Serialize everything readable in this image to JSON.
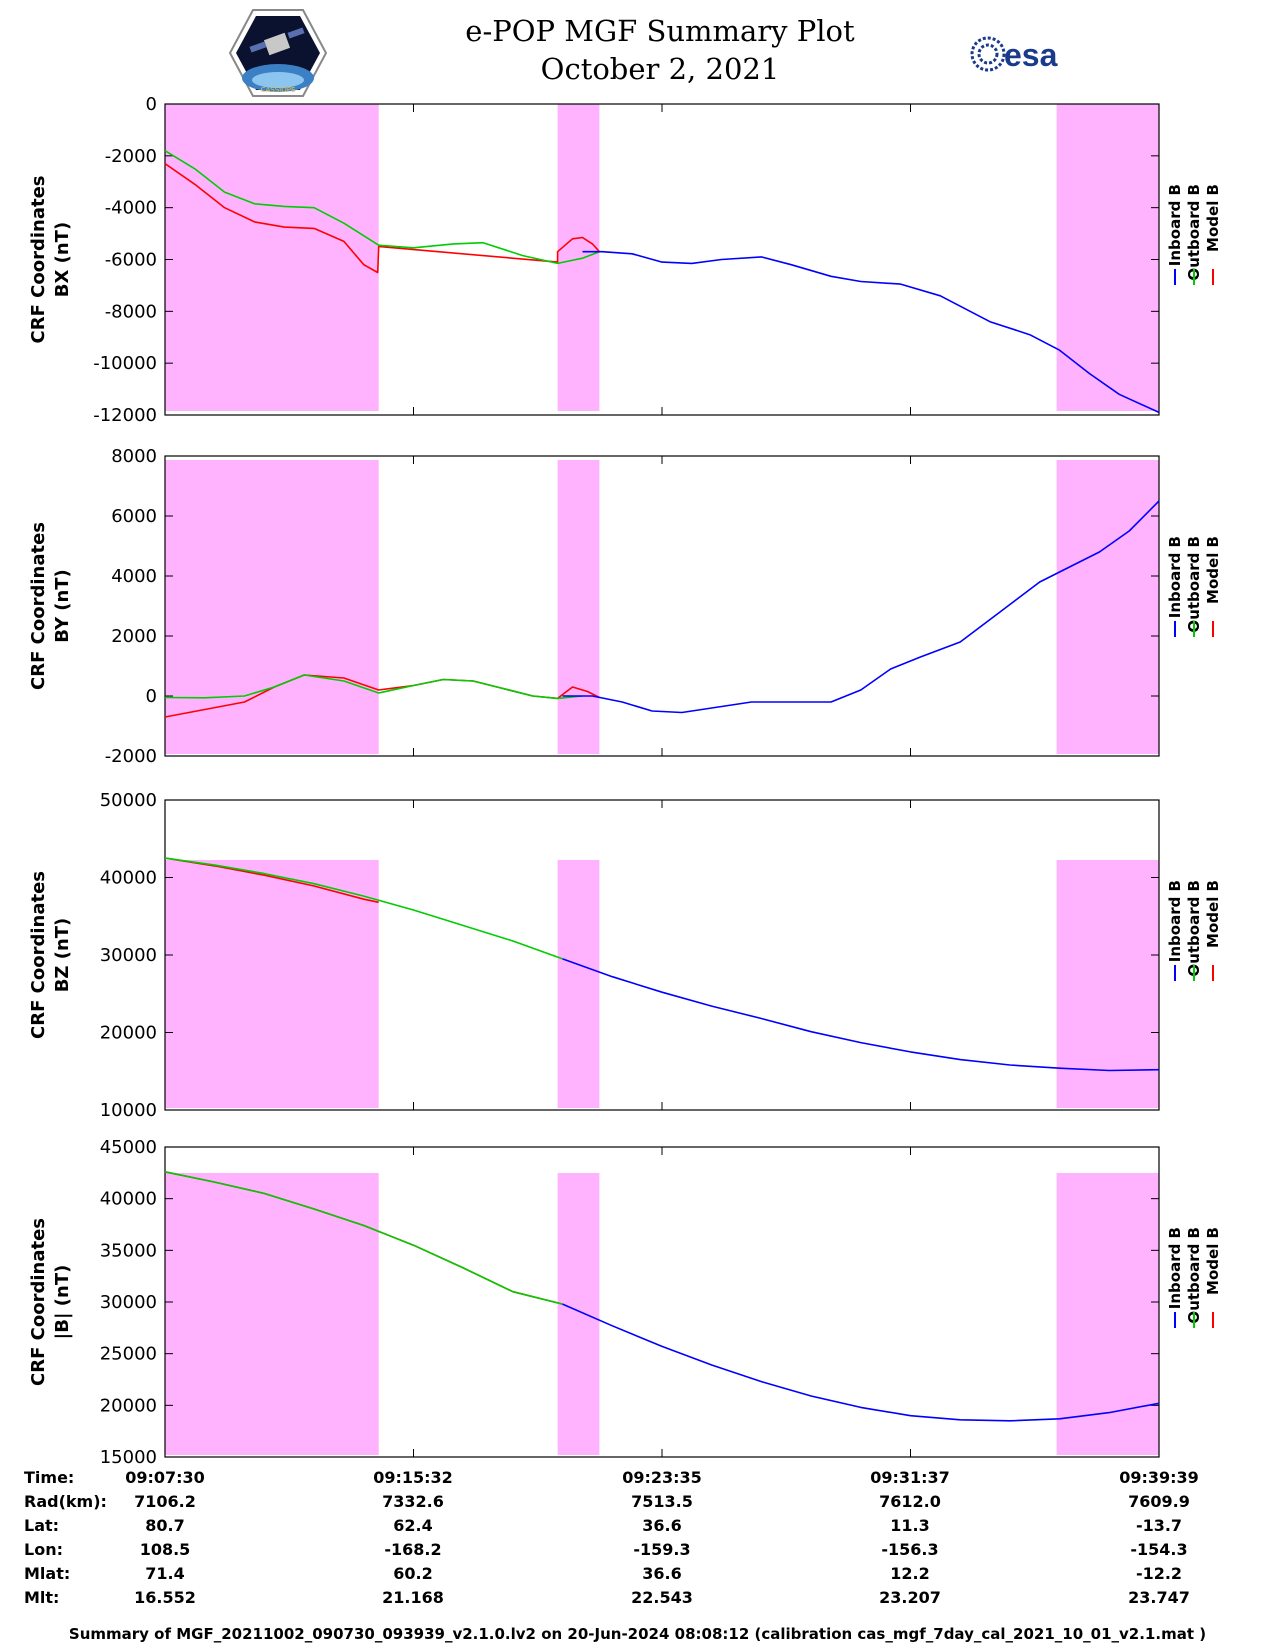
{
  "header": {
    "title_line1": "e-POP MGF Summary Plot",
    "title_line2": "October 2, 2021",
    "logo_left_text": "CASSIOPE",
    "logo_right_text": "esa"
  },
  "colors": {
    "inboard": "#0000ff",
    "outboard": "#00cc00",
    "model": "#ff0000",
    "shade": "#ffb3ff"
  },
  "chart_data": [
    {
      "type": "line",
      "ylabel": [
        "CRF Coordinates",
        "BX (nT)"
      ],
      "ylim": [
        -12000,
        0
      ],
      "yticks": [
        0,
        -2000,
        -4000,
        -6000,
        -8000,
        -10000,
        -12000
      ],
      "legend": [
        "Inboard B",
        "Outboard B",
        "Model B"
      ],
      "shaded_x": [
        [
          0,
          0.215
        ],
        [
          0.395,
          0.437
        ],
        [
          0.897,
          1.0
        ]
      ],
      "series": [
        {
          "name": "Model B",
          "x": [
            0,
            0.03,
            0.06,
            0.09,
            0.12,
            0.15,
            0.18,
            0.2,
            0.214,
            0.215,
            0.395,
            0.395,
            0.41,
            0.42,
            0.43,
            0.437
          ],
          "values": [
            -2300,
            -3100,
            -4000,
            -4550,
            -4750,
            -4800,
            -5300,
            -6200,
            -6500,
            -5500,
            -6100,
            -5700,
            -5200,
            -5150,
            -5400,
            -5700
          ]
        },
        {
          "name": "Outboard B",
          "x": [
            0,
            0.03,
            0.06,
            0.09,
            0.12,
            0.15,
            0.18,
            0.215,
            0.25,
            0.29,
            0.32,
            0.36,
            0.395,
            0.42,
            0.437
          ],
          "values": [
            -1800,
            -2500,
            -3400,
            -3850,
            -3950,
            -4000,
            -4600,
            -5450,
            -5550,
            -5400,
            -5350,
            -5850,
            -6150,
            -5950,
            -5700
          ]
        },
        {
          "name": "Inboard B",
          "x": [
            0.42,
            0.44,
            0.47,
            0.5,
            0.53,
            0.56,
            0.6,
            0.63,
            0.67,
            0.7,
            0.74,
            0.78,
            0.83,
            0.87,
            0.9,
            0.93,
            0.96,
            1.0
          ],
          "values": [
            -5700,
            -5700,
            -5780,
            -6100,
            -6150,
            -6000,
            -5900,
            -6200,
            -6650,
            -6850,
            -6950,
            -7400,
            -8400,
            -8900,
            -9500,
            -10400,
            -11200,
            -11900
          ]
        }
      ]
    },
    {
      "type": "line",
      "ylabel": [
        "CRF Coordinates",
        "BY (nT)"
      ],
      "ylim": [
        -2000,
        8000
      ],
      "yticks": [
        8000,
        6000,
        4000,
        2000,
        0,
        -2000
      ],
      "legend": [
        "Inboard B",
        "Outboard B",
        "Model B"
      ],
      "shaded_x": [
        [
          0,
          0.215
        ],
        [
          0.395,
          0.437
        ],
        [
          0.897,
          1.0
        ]
      ],
      "series": [
        {
          "name": "Model B",
          "x": [
            0,
            0.04,
            0.08,
            0.11,
            0.14,
            0.18,
            0.215,
            0.25,
            0.28,
            0.31,
            0.34,
            0.37,
            0.395,
            0.41,
            0.425,
            0.437
          ],
          "values": [
            -700,
            -450,
            -200,
            300,
            700,
            600,
            200,
            350,
            550,
            500,
            250,
            0,
            -80,
            300,
            150,
            -50
          ]
        },
        {
          "name": "Outboard B",
          "x": [
            0,
            0.04,
            0.08,
            0.11,
            0.14,
            0.18,
            0.215,
            0.25,
            0.28,
            0.31,
            0.34,
            0.37,
            0.395,
            0.42
          ],
          "values": [
            -50,
            -60,
            0,
            300,
            700,
            500,
            100,
            350,
            550,
            500,
            250,
            0,
            -80,
            0
          ]
        },
        {
          "name": "Inboard B",
          "x": [
            0.4,
            0.43,
            0.46,
            0.49,
            0.52,
            0.55,
            0.59,
            0.63,
            0.67,
            0.7,
            0.73,
            0.76,
            0.8,
            0.84,
            0.88,
            0.91,
            0.94,
            0.97,
            1.0
          ],
          "values": [
            0,
            0,
            -200,
            -500,
            -550,
            -400,
            -200,
            -200,
            -200,
            200,
            900,
            1300,
            1800,
            2800,
            3800,
            4300,
            4800,
            5500,
            6500
          ]
        }
      ]
    },
    {
      "type": "line",
      "ylabel": [
        "CRF Coordinates",
        "BZ (nT)"
      ],
      "ylim": [
        10000,
        50000
      ],
      "yticks": [
        50000,
        40000,
        30000,
        20000,
        10000
      ],
      "legend": [
        "Inboard B",
        "Outboard B",
        "Model B"
      ],
      "shaded_x": [
        [
          0,
          0.215
        ],
        [
          0.395,
          0.437
        ],
        [
          0.897,
          1.0
        ]
      ],
      "series": [
        {
          "name": "Model B",
          "x": [
            0,
            0.05,
            0.1,
            0.15,
            0.2,
            0.215
          ],
          "values": [
            42500,
            41500,
            40300,
            38900,
            37200,
            36800
          ]
        },
        {
          "name": "Outboard B",
          "x": [
            0,
            0.05,
            0.1,
            0.15,
            0.2,
            0.25,
            0.3,
            0.35,
            0.4
          ],
          "values": [
            42500,
            41600,
            40500,
            39200,
            37600,
            35800,
            33800,
            31800,
            29500
          ]
        },
        {
          "name": "Inboard B",
          "x": [
            0.4,
            0.45,
            0.5,
            0.55,
            0.6,
            0.65,
            0.7,
            0.75,
            0.8,
            0.85,
            0.9,
            0.95,
            1.0
          ],
          "values": [
            29500,
            27200,
            25200,
            23400,
            21800,
            20100,
            18700,
            17500,
            16500,
            15800,
            15400,
            15100,
            15200
          ]
        }
      ]
    },
    {
      "type": "line",
      "ylabel": [
        "CRF Coordinates",
        "|B| (nT)"
      ],
      "ylim": [
        15000,
        45000
      ],
      "yticks": [
        45000,
        40000,
        35000,
        30000,
        25000,
        20000,
        15000
      ],
      "legend": [
        "Inboard B",
        "Outboard B",
        "Model B"
      ],
      "shaded_x": [
        [
          0,
          0.215
        ],
        [
          0.395,
          0.437
        ],
        [
          0.897,
          1.0
        ]
      ],
      "series": [
        {
          "name": "Model B",
          "x": [
            0,
            0.05,
            0.1,
            0.15,
            0.2,
            0.25,
            0.3,
            0.35,
            0.4
          ],
          "values": [
            42600,
            41600,
            40500,
            39000,
            37400,
            35500,
            33300,
            31000,
            29800
          ]
        },
        {
          "name": "Outboard B",
          "x": [
            0,
            0.05,
            0.1,
            0.15,
            0.2,
            0.25,
            0.3,
            0.35,
            0.4
          ],
          "values": [
            42600,
            41600,
            40500,
            39000,
            37400,
            35500,
            33300,
            31000,
            29800
          ]
        },
        {
          "name": "Inboard B",
          "x": [
            0.4,
            0.45,
            0.5,
            0.55,
            0.6,
            0.65,
            0.7,
            0.75,
            0.8,
            0.85,
            0.9,
            0.95,
            1.0
          ],
          "values": [
            29800,
            27700,
            25700,
            23900,
            22300,
            20900,
            19800,
            19000,
            18600,
            18500,
            18700,
            19300,
            20200
          ]
        }
      ]
    }
  ],
  "table": {
    "labels": [
      "Time:",
      "Rad(km):",
      "Lat:",
      "Lon:",
      "Mlat:",
      "Mlt:"
    ],
    "columns": [
      [
        "09:07:30",
        "7106.2",
        "80.7",
        "108.5",
        "71.4",
        "16.552"
      ],
      [
        "09:15:32",
        "7332.6",
        "62.4",
        "-168.2",
        "60.2",
        "21.168"
      ],
      [
        "09:23:35",
        "7513.5",
        "36.6",
        "-159.3",
        "36.6",
        "22.543"
      ],
      [
        "09:31:37",
        "7612.0",
        "11.3",
        "-156.3",
        "12.2",
        "23.207"
      ],
      [
        "09:39:39",
        "7609.9",
        "-13.7",
        "-154.3",
        "-12.2",
        "23.747"
      ]
    ]
  },
  "footer": "Summary of MGF_20211002_090730_093939_v2.1.0.lv2 on 20-Jun-2024 08:08:12 (calibration cas_mgf_7day_cal_2021_10_01_v2.1.mat )"
}
